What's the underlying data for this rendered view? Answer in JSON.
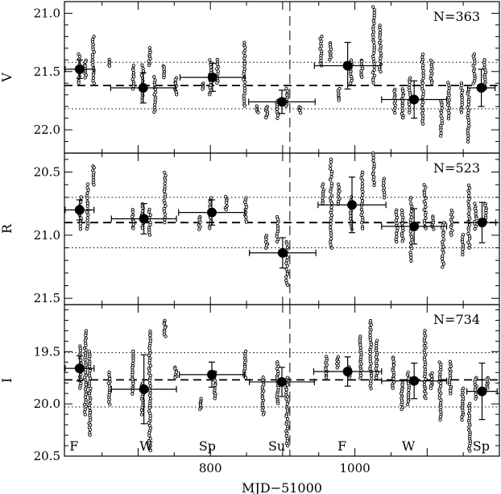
{
  "chart_data": [
    {
      "type": "scatter",
      "ylabel": "V",
      "n_label": "N=363",
      "ylim": [
        22.2,
        20.9
      ],
      "y_ticks": [
        "21.0",
        "21.5",
        "22.0"
      ],
      "y_tick_values": [
        21.0,
        21.5,
        22.0
      ],
      "mean_line": 21.62,
      "dotted_lines": [
        21.42,
        21.82
      ],
      "season_means": [
        {
          "x": 619,
          "y": 21.48,
          "xerr": 20,
          "yerr": 0.08
        },
        {
          "x": 707,
          "y": 21.64,
          "xerr": 45,
          "yerr": 0.13
        },
        {
          "x": 803,
          "y": 21.55,
          "xerr": 45,
          "yerr": 0.12
        },
        {
          "x": 899,
          "y": 21.76,
          "xerr": 46,
          "yerr": 0.1
        },
        {
          "x": 990,
          "y": 21.45,
          "xerr": 46,
          "yerr": 0.2
        },
        {
          "x": 1082,
          "y": 21.74,
          "xerr": 45,
          "yerr": 0.16
        },
        {
          "x": 1175,
          "y": 21.64,
          "xerr": 19,
          "yerr": 0.16
        }
      ],
      "observation_clusters": [
        {
          "x": 618,
          "y_min": 21.35,
          "y_max": 21.6
        },
        {
          "x": 627,
          "y_min": 21.4,
          "y_max": 21.55
        },
        {
          "x": 638,
          "y_min": 21.2,
          "y_max": 21.6
        },
        {
          "x": 660,
          "y_min": 21.4,
          "y_max": 21.45
        },
        {
          "x": 693,
          "y_min": 21.45,
          "y_max": 21.65
        },
        {
          "x": 706,
          "y_min": 21.45,
          "y_max": 21.75
        },
        {
          "x": 716,
          "y_min": 21.3,
          "y_max": 21.45
        },
        {
          "x": 723,
          "y_min": 21.55,
          "y_max": 21.85
        },
        {
          "x": 736,
          "y_min": 21.45,
          "y_max": 21.55
        },
        {
          "x": 752,
          "y_min": 21.55,
          "y_max": 21.7
        },
        {
          "x": 789,
          "y_min": 21.6,
          "y_max": 21.65
        },
        {
          "x": 800,
          "y_min": 21.4,
          "y_max": 21.7
        },
        {
          "x": 810,
          "y_min": 21.4,
          "y_max": 21.6
        },
        {
          "x": 847,
          "y_min": 21.25,
          "y_max": 21.8
        },
        {
          "x": 865,
          "y_min": 21.8,
          "y_max": 21.85
        },
        {
          "x": 878,
          "y_min": 21.8,
          "y_max": 21.9
        },
        {
          "x": 893,
          "y_min": 21.75,
          "y_max": 21.9
        },
        {
          "x": 906,
          "y_min": 21.65,
          "y_max": 21.8
        },
        {
          "x": 924,
          "y_min": 21.8,
          "y_max": 21.85
        },
        {
          "x": 953,
          "y_min": 21.2,
          "y_max": 21.45
        },
        {
          "x": 966,
          "y_min": 21.25,
          "y_max": 21.4
        },
        {
          "x": 978,
          "y_min": 21.65,
          "y_max": 21.75
        },
        {
          "x": 995,
          "y_min": 21.4,
          "y_max": 21.6
        },
        {
          "x": 1010,
          "y_min": 21.4,
          "y_max": 21.55
        },
        {
          "x": 1026,
          "y_min": 20.95,
          "y_max": 21.6
        },
        {
          "x": 1035,
          "y_min": 21.1,
          "y_max": 21.5
        },
        {
          "x": 1055,
          "y_min": 21.65,
          "y_max": 21.85
        },
        {
          "x": 1066,
          "y_min": 21.65,
          "y_max": 21.9
        },
        {
          "x": 1076,
          "y_min": 21.55,
          "y_max": 21.85
        },
        {
          "x": 1094,
          "y_min": 21.35,
          "y_max": 21.95
        },
        {
          "x": 1106,
          "y_min": 21.4,
          "y_max": 21.6
        },
        {
          "x": 1120,
          "y_min": 21.75,
          "y_max": 22.05
        },
        {
          "x": 1130,
          "y_min": 21.6,
          "y_max": 21.9
        },
        {
          "x": 1148,
          "y_min": 21.6,
          "y_max": 21.85
        },
        {
          "x": 1157,
          "y_min": 21.65,
          "y_max": 22.1
        },
        {
          "x": 1165,
          "y_min": 21.35,
          "y_max": 21.6
        },
        {
          "x": 1180,
          "y_min": 21.4,
          "y_max": 21.65
        }
      ]
    },
    {
      "type": "scatter",
      "ylabel": "R",
      "n_label": "N=523",
      "ylim": [
        21.55,
        20.35
      ],
      "y_ticks": [
        "20.5",
        "21.0",
        "21.5"
      ],
      "y_tick_values": [
        20.5,
        21.0,
        21.5
      ],
      "mean_line": 20.9,
      "dotted_lines": [
        20.7,
        21.1
      ],
      "season_means": [
        {
          "x": 619,
          "y": 20.8,
          "xerr": 20,
          "yerr": 0.08
        },
        {
          "x": 708,
          "y": 20.87,
          "xerr": 45,
          "yerr": 0.12
        },
        {
          "x": 802,
          "y": 20.82,
          "xerr": 46,
          "yerr": 0.1
        },
        {
          "x": 900,
          "y": 21.14,
          "xerr": 46,
          "yerr": 0.12
        },
        {
          "x": 996,
          "y": 20.76,
          "xerr": 47,
          "yerr": 0.22
        },
        {
          "x": 1082,
          "y": 20.93,
          "xerr": 45,
          "yerr": 0.14
        },
        {
          "x": 1176,
          "y": 20.9,
          "xerr": 19,
          "yerr": 0.16
        }
      ],
      "observation_clusters": [
        {
          "x": 620,
          "y_min": 20.7,
          "y_max": 20.95
        },
        {
          "x": 630,
          "y_min": 20.6,
          "y_max": 20.95
        },
        {
          "x": 638,
          "y_min": 20.45,
          "y_max": 20.6
        },
        {
          "x": 693,
          "y_min": 20.8,
          "y_max": 20.95
        },
        {
          "x": 706,
          "y_min": 20.75,
          "y_max": 20.95
        },
        {
          "x": 716,
          "y_min": 20.8,
          "y_max": 21.0
        },
        {
          "x": 737,
          "y_min": 20.5,
          "y_max": 20.9
        },
        {
          "x": 785,
          "y_min": 20.85,
          "y_max": 20.95
        },
        {
          "x": 800,
          "y_min": 20.7,
          "y_max": 20.95
        },
        {
          "x": 822,
          "y_min": 20.7,
          "y_max": 20.8
        },
        {
          "x": 849,
          "y_min": 20.7,
          "y_max": 20.9
        },
        {
          "x": 878,
          "y_min": 21.0,
          "y_max": 21.1
        },
        {
          "x": 893,
          "y_min": 20.85,
          "y_max": 21.05
        },
        {
          "x": 906,
          "y_min": 21.05,
          "y_max": 21.4
        },
        {
          "x": 956,
          "y_min": 20.6,
          "y_max": 20.75
        },
        {
          "x": 967,
          "y_min": 20.4,
          "y_max": 21.1
        },
        {
          "x": 978,
          "y_min": 20.6,
          "y_max": 20.75
        },
        {
          "x": 995,
          "y_min": 20.7,
          "y_max": 20.95
        },
        {
          "x": 1010,
          "y_min": 20.5,
          "y_max": 20.95
        },
        {
          "x": 1026,
          "y_min": 20.35,
          "y_max": 20.6
        },
        {
          "x": 1040,
          "y_min": 20.55,
          "y_max": 20.7
        },
        {
          "x": 1058,
          "y_min": 20.8,
          "y_max": 21.05
        },
        {
          "x": 1066,
          "y_min": 20.8,
          "y_max": 21.05
        },
        {
          "x": 1078,
          "y_min": 20.7,
          "y_max": 21.2
        },
        {
          "x": 1097,
          "y_min": 20.6,
          "y_max": 20.95
        },
        {
          "x": 1108,
          "y_min": 20.85,
          "y_max": 20.95
        },
        {
          "x": 1122,
          "y_min": 20.9,
          "y_max": 21.25
        },
        {
          "x": 1134,
          "y_min": 20.8,
          "y_max": 21.0
        },
        {
          "x": 1149,
          "y_min": 21.0,
          "y_max": 21.15
        },
        {
          "x": 1158,
          "y_min": 20.6,
          "y_max": 21.1
        },
        {
          "x": 1167,
          "y_min": 20.75,
          "y_max": 20.95
        },
        {
          "x": 1181,
          "y_min": 20.75,
          "y_max": 20.9
        }
      ]
    },
    {
      "type": "scatter",
      "ylabel": "I",
      "n_label": "N=734",
      "ylim": [
        20.5,
        19.05
      ],
      "y_ticks": [
        "19.5",
        "20.0",
        "20.5"
      ],
      "y_tick_values": [
        19.5,
        20.0,
        20.5
      ],
      "mean_line": 19.77,
      "dotted_lines": [
        19.51,
        20.03
      ],
      "season_means": [
        {
          "x": 619,
          "y": 19.66,
          "xerr": 20,
          "yerr": 0.12
        },
        {
          "x": 708,
          "y": 19.86,
          "xerr": 45,
          "yerr": 0.33
        },
        {
          "x": 802,
          "y": 19.72,
          "xerr": 45,
          "yerr": 0.12
        },
        {
          "x": 899,
          "y": 19.79,
          "xerr": 45,
          "yerr": 0.14
        },
        {
          "x": 990,
          "y": 19.69,
          "xerr": 47,
          "yerr": 0.14
        },
        {
          "x": 1082,
          "y": 19.78,
          "xerr": 45,
          "yerr": 0.17
        },
        {
          "x": 1176,
          "y": 19.88,
          "xerr": 21,
          "yerr": 0.27
        }
      ],
      "observation_clusters": [
        {
          "x": 620,
          "y_min": 19.45,
          "y_max": 19.85
        },
        {
          "x": 627,
          "y_min": 19.3,
          "y_max": 20.1
        },
        {
          "x": 633,
          "y_min": 19.5,
          "y_max": 20.3
        },
        {
          "x": 660,
          "y_min": 19.7,
          "y_max": 20.0
        },
        {
          "x": 693,
          "y_min": 19.5,
          "y_max": 19.9
        },
        {
          "x": 706,
          "y_min": 19.8,
          "y_max": 20.1
        },
        {
          "x": 716,
          "y_min": 19.3,
          "y_max": 20.45
        },
        {
          "x": 737,
          "y_min": 19.2,
          "y_max": 19.35
        },
        {
          "x": 752,
          "y_min": 19.65,
          "y_max": 19.75
        },
        {
          "x": 786,
          "y_min": 19.95,
          "y_max": 20.05
        },
        {
          "x": 806,
          "y_min": 19.7,
          "y_max": 19.95
        },
        {
          "x": 848,
          "y_min": 19.5,
          "y_max": 19.75
        },
        {
          "x": 873,
          "y_min": 19.75,
          "y_max": 20.1
        },
        {
          "x": 893,
          "y_min": 19.6,
          "y_max": 20.0
        },
        {
          "x": 906,
          "y_min": 19.75,
          "y_max": 20.4
        },
        {
          "x": 960,
          "y_min": 19.55,
          "y_max": 19.75
        },
        {
          "x": 976,
          "y_min": 19.55,
          "y_max": 19.65
        },
        {
          "x": 992,
          "y_min": 19.65,
          "y_max": 19.75
        },
        {
          "x": 1008,
          "y_min": 19.35,
          "y_max": 19.75
        },
        {
          "x": 1022,
          "y_min": 19.2,
          "y_max": 19.85
        },
        {
          "x": 1030,
          "y_min": 19.4,
          "y_max": 19.75
        },
        {
          "x": 1053,
          "y_min": 19.55,
          "y_max": 19.85
        },
        {
          "x": 1065,
          "y_min": 19.8,
          "y_max": 20.05
        },
        {
          "x": 1074,
          "y_min": 19.7,
          "y_max": 20.0
        },
        {
          "x": 1097,
          "y_min": 19.3,
          "y_max": 19.95
        },
        {
          "x": 1106,
          "y_min": 19.7,
          "y_max": 19.85
        },
        {
          "x": 1118,
          "y_min": 19.6,
          "y_max": 20.15
        },
        {
          "x": 1132,
          "y_min": 19.6,
          "y_max": 19.9
        },
        {
          "x": 1149,
          "y_min": 19.85,
          "y_max": 20.15
        },
        {
          "x": 1159,
          "y_min": 20.0,
          "y_max": 20.45
        },
        {
          "x": 1167,
          "y_min": 19.75,
          "y_max": 19.95
        },
        {
          "x": 1183,
          "y_min": 19.75,
          "y_max": 19.85
        }
      ]
    }
  ],
  "x_axis": {
    "label": "MJD−51000",
    "xlim": [
      598,
      1200
    ],
    "ticks": [
      "800",
      "1000"
    ],
    "tick_values": [
      800,
      1000
    ],
    "vline": 910
  },
  "season_labels": [
    {
      "text": "F",
      "x": 605
    },
    {
      "text": "W",
      "x": 702
    },
    {
      "text": "Sp",
      "x": 784
    },
    {
      "text": "Su",
      "x": 880
    },
    {
      "text": "F",
      "x": 976
    },
    {
      "text": "W",
      "x": 1065
    },
    {
      "text": "Sp",
      "x": 1163
    }
  ]
}
